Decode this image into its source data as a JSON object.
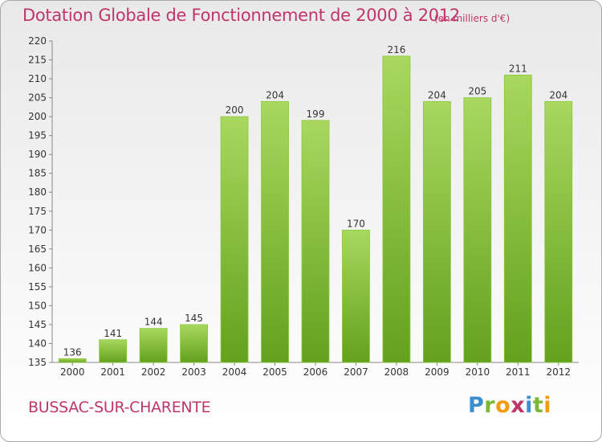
{
  "chart_data": {
    "type": "bar",
    "title": "Dotation Globale de Fonctionnement de 2000 à 2012",
    "unit": "(en milliers d'€)",
    "categories": [
      "2000",
      "2001",
      "2002",
      "2003",
      "2004",
      "2005",
      "2006",
      "2007",
      "2008",
      "2009",
      "2010",
      "2011",
      "2012"
    ],
    "values": [
      136,
      141,
      144,
      145,
      200,
      204,
      199,
      170,
      216,
      204,
      205,
      211,
      204
    ],
    "ylim": [
      135,
      220
    ],
    "ytick_step": 5,
    "grid": false,
    "bar_color": "#7cb835"
  },
  "commune": "BUSSAC-SUR-CHARENTE",
  "logo": {
    "letters": [
      "P",
      "r",
      "o",
      "x",
      "i",
      "t",
      "i"
    ],
    "colors": [
      "#3a8fd0",
      "#7cb835",
      "#f39c12",
      "#c0356a",
      "#3a8fd0",
      "#7cb835",
      "#f39c12"
    ]
  }
}
